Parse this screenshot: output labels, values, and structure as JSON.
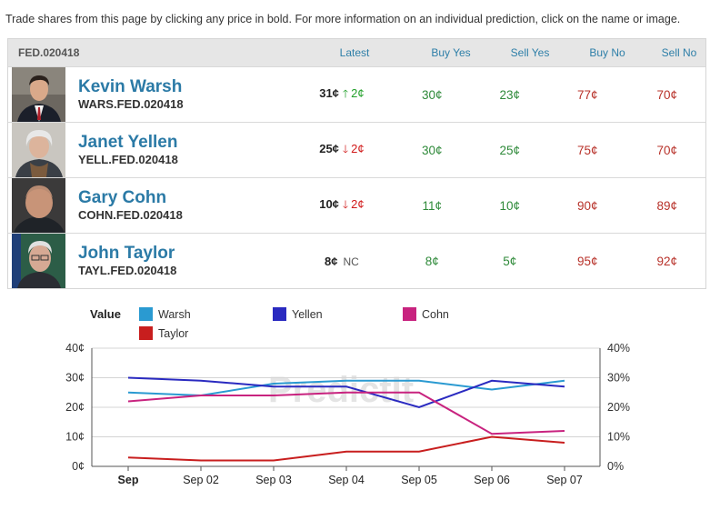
{
  "intro_text": "Trade shares from this page by clicking any price in bold. For more information on an individual prediction, click on the name or image.",
  "market": {
    "id": "FED.020418",
    "columns": {
      "latest": "Latest",
      "buy_yes": "Buy Yes",
      "sell_yes": "Sell Yes",
      "buy_no": "Buy No",
      "sell_no": "Sell No"
    },
    "contracts": [
      {
        "name": "Kevin Warsh",
        "ticker": "WARS.FED.020418",
        "latest": "31¢",
        "direction": "up",
        "arrow": "🡑",
        "change": "2¢",
        "buy_yes": "30¢",
        "sell_yes": "23¢",
        "buy_no": "77¢",
        "sell_no": "70¢"
      },
      {
        "name": "Janet Yellen",
        "ticker": "YELL.FED.020418",
        "latest": "25¢",
        "direction": "down",
        "arrow": "🡓",
        "change": "2¢",
        "buy_yes": "30¢",
        "sell_yes": "25¢",
        "buy_no": "75¢",
        "sell_no": "70¢"
      },
      {
        "name": "Gary Cohn",
        "ticker": "COHN.FED.020418",
        "latest": "10¢",
        "direction": "down",
        "arrow": "🡓",
        "change": "2¢",
        "buy_yes": "11¢",
        "sell_yes": "10¢",
        "buy_no": "90¢",
        "sell_no": "89¢"
      },
      {
        "name": "John Taylor",
        "ticker": "TAYL.FED.020418",
        "latest": "8¢",
        "direction": "nc",
        "arrow": "",
        "change": "NC",
        "buy_yes": "8¢",
        "sell_yes": "5¢",
        "buy_no": "95¢",
        "sell_no": "92¢"
      }
    ]
  },
  "chart_data": {
    "type": "line",
    "legend_title": "Value",
    "legend_position": "top",
    "watermark": "PredictIt",
    "x": [
      "Sep",
      "Sep 02",
      "Sep 03",
      "Sep 04",
      "Sep 05",
      "Sep 06",
      "Sep 07"
    ],
    "ylim": [
      0,
      40
    ],
    "y_ticks_left": [
      "0¢",
      "10¢",
      "20¢",
      "30¢",
      "40¢"
    ],
    "y_ticks_right": [
      "0%",
      "10%",
      "20%",
      "30%",
      "40%"
    ],
    "grid": true,
    "series": [
      {
        "name": "Warsh",
        "color": "#2a9ad1",
        "values": [
          25,
          24,
          28,
          29,
          29,
          26,
          29
        ]
      },
      {
        "name": "Yellen",
        "color": "#2a2ac0",
        "values": [
          30,
          29,
          27,
          27,
          20,
          29,
          27
        ]
      },
      {
        "name": "Cohn",
        "color": "#c8237f",
        "values": [
          22,
          24,
          24,
          25,
          25,
          11,
          12
        ]
      },
      {
        "name": "Taylor",
        "color": "#c81e1e",
        "values": [
          3,
          2,
          2,
          5,
          5,
          10,
          8
        ]
      }
    ]
  }
}
